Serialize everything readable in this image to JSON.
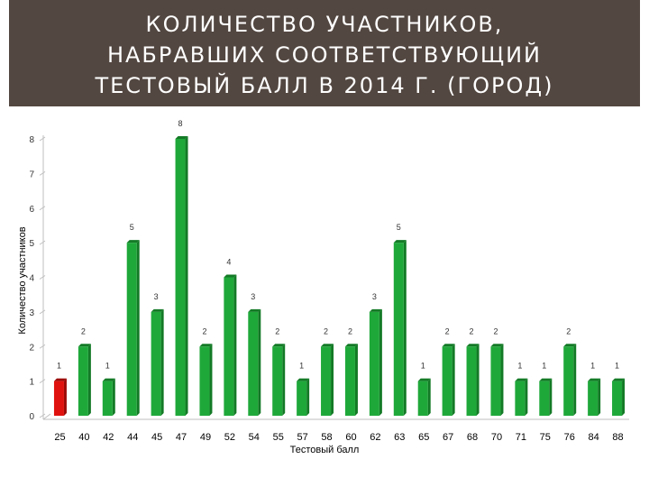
{
  "title_lines": [
    "КОЛИЧЕСТВО УЧАСТНИКОВ,",
    "НАБРАВШИХ СООТВЕТСТВУЮЩИЙ",
    "ТЕСТОВЫЙ БАЛЛ В 2014 Г.  (ГОРОД)"
  ],
  "colors": {
    "title_bar": "#534741",
    "bar_green": "#1fa83a",
    "bar_green_dark": "#137a26",
    "bar_red": "#e0120f",
    "bar_red_dark": "#9c0b09"
  },
  "chart_data": {
    "type": "bar",
    "title": "",
    "xlabel": "Тестовый балл",
    "ylabel": "Количество участников",
    "ylim": [
      0,
      8
    ],
    "yticks": [
      0,
      1,
      2,
      3,
      4,
      5,
      6,
      7,
      8
    ],
    "grid": false,
    "style": "3d-bars",
    "categories": [
      "25",
      "40",
      "42",
      "44",
      "45",
      "47",
      "49",
      "52",
      "54",
      "55",
      "57",
      "58",
      "60",
      "62",
      "63",
      "65",
      "67",
      "68",
      "70",
      "71",
      "75",
      "76",
      "84",
      "88"
    ],
    "values": [
      1,
      2,
      1,
      5,
      3,
      8,
      2,
      4,
      3,
      2,
      1,
      2,
      2,
      3,
      5,
      1,
      2,
      2,
      2,
      1,
      1,
      2,
      1,
      1
    ],
    "highlight": {
      "category": "25",
      "color": "#e0120f"
    }
  }
}
